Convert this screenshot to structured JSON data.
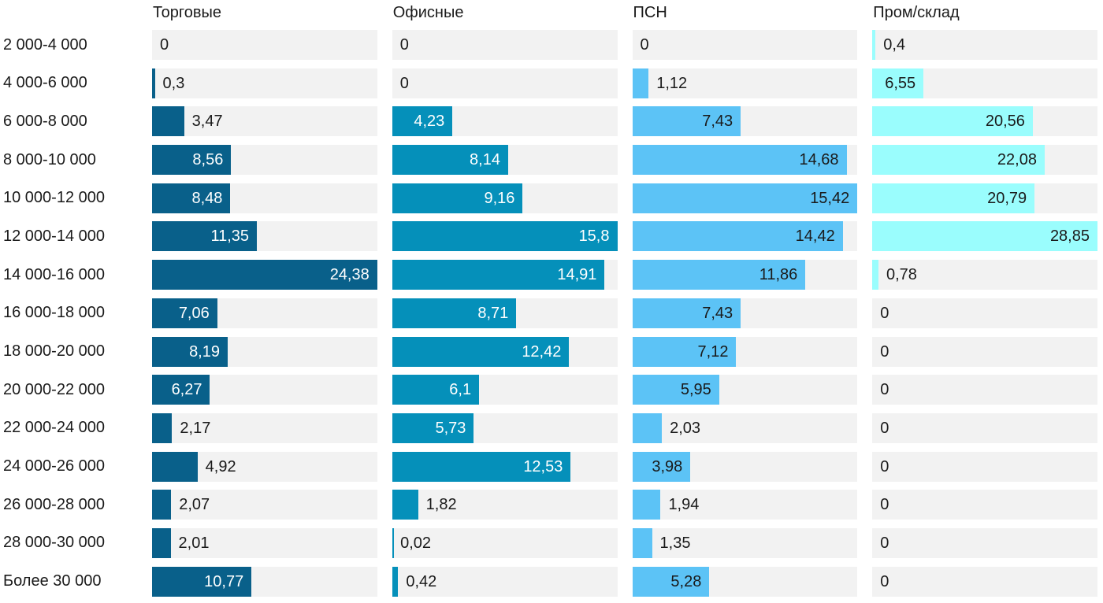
{
  "chart_data": {
    "type": "bar",
    "orientation": "horizontal",
    "layout": "small-multiples-columns",
    "grid": false,
    "legend_position": "column-headers",
    "background_color": "#ffffff",
    "track_color": "#f2f2f2",
    "text_color": "#1a1a1a",
    "decimal_separator": ",",
    "categories": [
      "2 000-4 000",
      "4 000-6 000",
      "6 000-8 000",
      "8 000-10 000",
      "10 000-12 000",
      "12 000-14 000",
      "14 000-16 000",
      "16 000-18 000",
      "18 000-20 000",
      "20 000-22 000",
      "22 000-24 000",
      "24 000-26 000",
      "26 000-28 000",
      "28 000-30 000",
      "Более 30 000"
    ],
    "series": [
      {
        "name": "Торговые",
        "color": "#09608a",
        "inside_text_color": "#ffffff",
        "axis_max": 24.38,
        "values": [
          0,
          0.3,
          3.47,
          8.56,
          8.48,
          11.35,
          24.38,
          7.06,
          8.19,
          6.27,
          2.17,
          4.92,
          2.07,
          2.01,
          10.77
        ],
        "labels": [
          "0",
          "0,3",
          "3,47",
          "8,56",
          "8,48",
          "11,35",
          "24,38",
          "7,06",
          "8,19",
          "6,27",
          "2,17",
          "4,92",
          "2,07",
          "2,01",
          "10,77"
        ]
      },
      {
        "name": "Офисные",
        "color": "#0590ba",
        "inside_text_color": "#ffffff",
        "axis_max": 15.8,
        "values": [
          0,
          0,
          4.23,
          8.14,
          9.16,
          15.8,
          14.91,
          8.71,
          12.42,
          6.1,
          5.73,
          12.53,
          1.82,
          0.02,
          0.42
        ],
        "labels": [
          "0",
          "0",
          "4,23",
          "8,14",
          "9,16",
          "15,8",
          "14,91",
          "8,71",
          "12,42",
          "6,1",
          "5,73",
          "12,53",
          "1,82",
          "0,02",
          "0,42"
        ]
      },
      {
        "name": "ПСН",
        "color": "#5cc3f6",
        "inside_text_color": "#1a1a1a",
        "axis_max": 15.42,
        "values": [
          0,
          1.12,
          7.43,
          14.68,
          15.42,
          14.42,
          11.86,
          7.43,
          7.12,
          5.95,
          2.03,
          3.98,
          1.94,
          1.35,
          5.28
        ],
        "labels": [
          "0",
          "1,12",
          "7,43",
          "14,68",
          "15,42",
          "14,42",
          "11,86",
          "7,43",
          "7,12",
          "5,95",
          "2,03",
          "3,98",
          "1,94",
          "1,35",
          "5,28"
        ]
      },
      {
        "name": "Пром/склад",
        "color": "#9afdfd",
        "inside_text_color": "#1a1a1a",
        "axis_max": 28.85,
        "values": [
          0.4,
          6.55,
          20.56,
          22.08,
          20.79,
          28.85,
          0.78,
          0,
          0,
          0,
          0,
          0,
          0,
          0,
          0
        ],
        "labels": [
          "0,4",
          "6,55",
          "20,56",
          "22,08",
          "20,79",
          "28,85",
          "0,78",
          "0",
          "0",
          "0",
          "0",
          "0",
          "0",
          "0",
          "0"
        ]
      }
    ]
  }
}
